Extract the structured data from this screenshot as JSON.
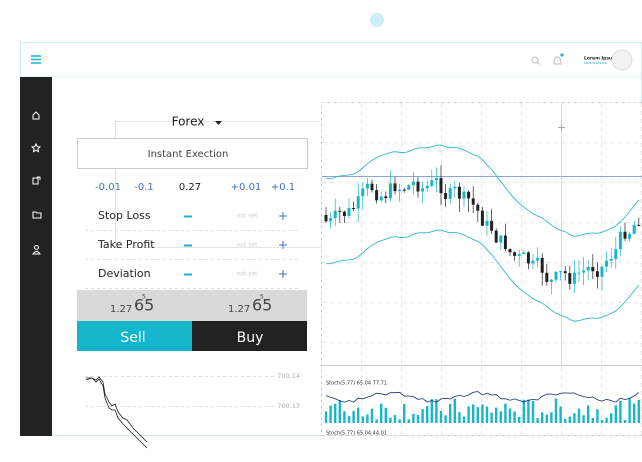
{
  "header": {
    "user_name": "Lorem Ipsum",
    "user_role": "Lorem Ipsum"
  },
  "order_panel": {
    "symbol": "Forex",
    "execution": "Instant Exection",
    "adjustments": [
      "-0.01",
      "-0.1",
      "0.27",
      "+0.01",
      "+0.1"
    ],
    "rows": [
      {
        "label": "Stop Loss",
        "value": "not set"
      },
      {
        "label": "Take Profit",
        "value": "not set"
      },
      {
        "label": "Deviation",
        "value": "not set"
      }
    ],
    "sell_price": {
      "base": "1.27",
      "pips": "65",
      "fraction": "5"
    },
    "buy_price": {
      "base": "1.27",
      "pips": "65",
      "fraction": "5"
    },
    "sell_button": "Sell",
    "buy_button": "Buy",
    "mini_chart_labels": [
      "700.14",
      "700.13"
    ]
  },
  "chart": {
    "indicator_labels": [
      "Stoch(5.77) 65.04 77.71",
      "Stoch(5.77) 65.04 44.01"
    ]
  }
}
